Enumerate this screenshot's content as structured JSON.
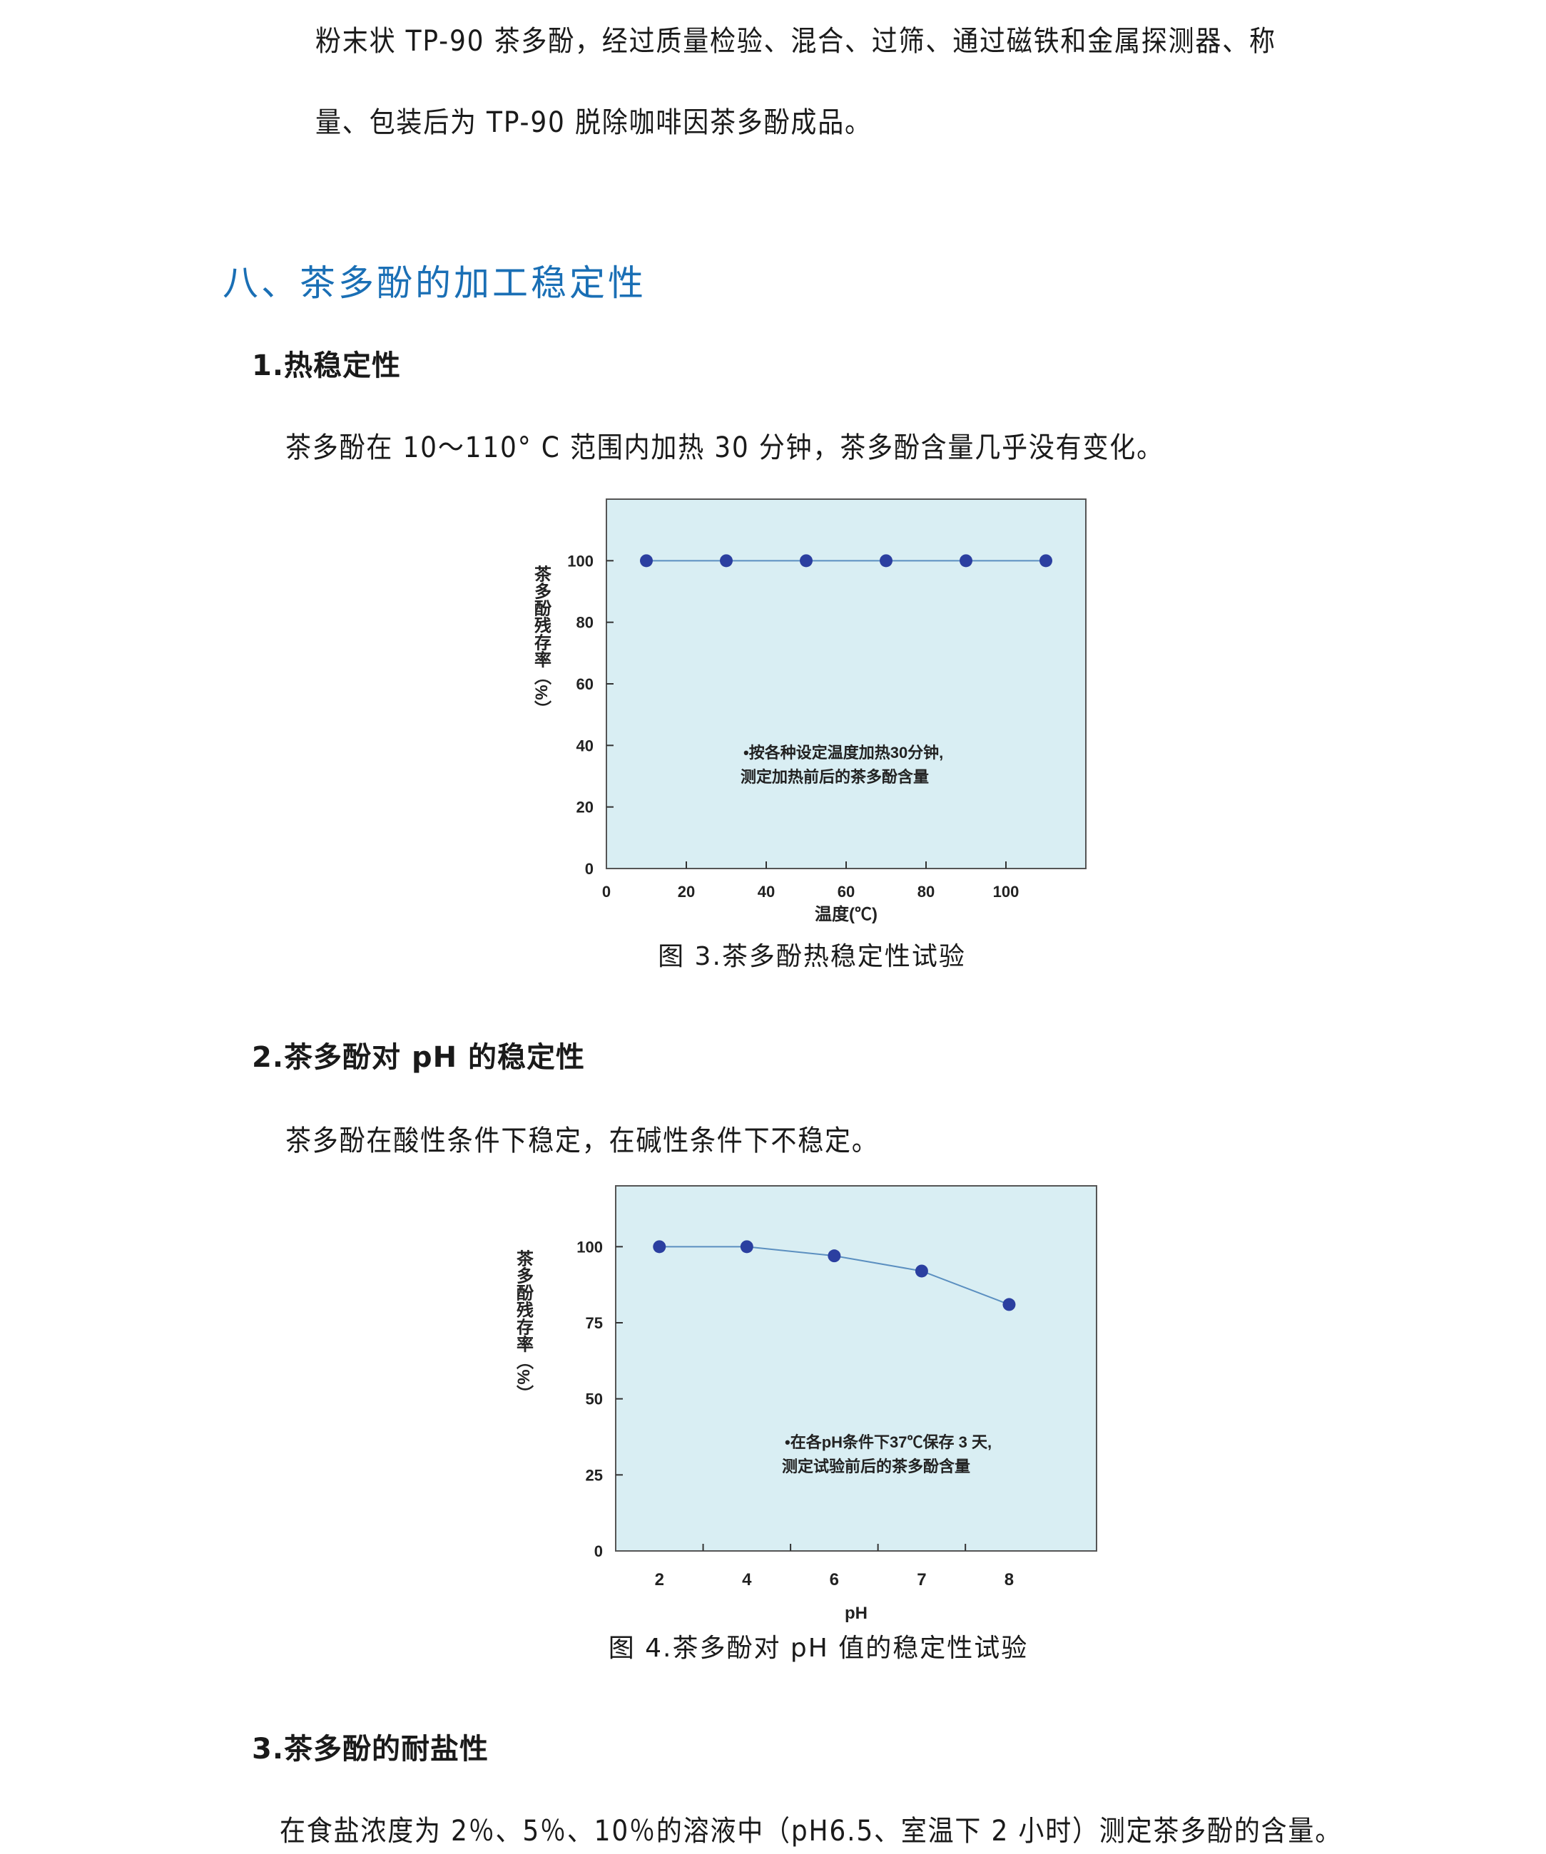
{
  "intro": {
    "line1": "粉末状 TP-90 茶多酚，经过质量检验、混合、过筛、通过磁铁和金属探测器、称",
    "line2": "量、包装后为 TP-90 脱除咖啡因茶多酚成品。"
  },
  "section8": {
    "heading": "八、茶多酚的加工稳定性",
    "heading_color": "#1a6fb5",
    "sub1": {
      "title": "1.热稳定性",
      "text": "茶多酚在 10～110° C 范围内加热 30 分钟，茶多酚含量几乎没有变化。",
      "caption": "图 3.茶多酚热稳定性试验"
    },
    "sub2": {
      "title": "2.茶多酚对 pH 的稳定性",
      "text": "茶多酚在酸性条件下稳定，在碱性条件下不稳定。",
      "caption": "图 4.茶多酚对 pH 值的稳定性试验"
    },
    "sub3": {
      "title": "3.茶多酚的耐盐性",
      "text": "在食盐浓度为 2％、5％、10％的溶液中（pH6.5、室温下 2 小时）测定茶多酚的含量。"
    }
  },
  "chart_data": [
    {
      "type": "line",
      "xlabel": "温度(℃)",
      "ylabel": "茶多酚残存率（%）",
      "x": [
        10,
        30,
        50,
        70,
        90,
        110
      ],
      "y": [
        100,
        100,
        100,
        100,
        100,
        100
      ],
      "xlim": [
        0,
        120
      ],
      "ylim": [
        0,
        120
      ],
      "xticks": [
        "0",
        "20",
        "40",
        "60",
        "80",
        "100"
      ],
      "yticks": [
        "0",
        "20",
        "40",
        "60",
        "80",
        "100"
      ],
      "annotation": [
        "•按各种设定温度加热30分钟,",
        "测定加热前后的茶多酚含量"
      ],
      "background": "#d9eef3",
      "marker_color": "#2b3fa0",
      "line_color": "#5b8fc0",
      "grid": false
    },
    {
      "type": "line",
      "xlabel": "pH",
      "ylabel": "茶多酚残存率（%）",
      "categories": [
        "2",
        "4",
        "6",
        "7",
        "8"
      ],
      "y": [
        100,
        100,
        97,
        92,
        81
      ],
      "ylim": [
        0,
        120
      ],
      "yticks": [
        "0",
        "25",
        "50",
        "75",
        "100"
      ],
      "annotation": [
        "•在各pH条件下37℃保存 3 天,",
        "测定试验前后的茶多酚含量"
      ],
      "background": "#d9eef3",
      "marker_color": "#2b3fa0",
      "line_color": "#5b8fc0",
      "grid": false
    }
  ]
}
